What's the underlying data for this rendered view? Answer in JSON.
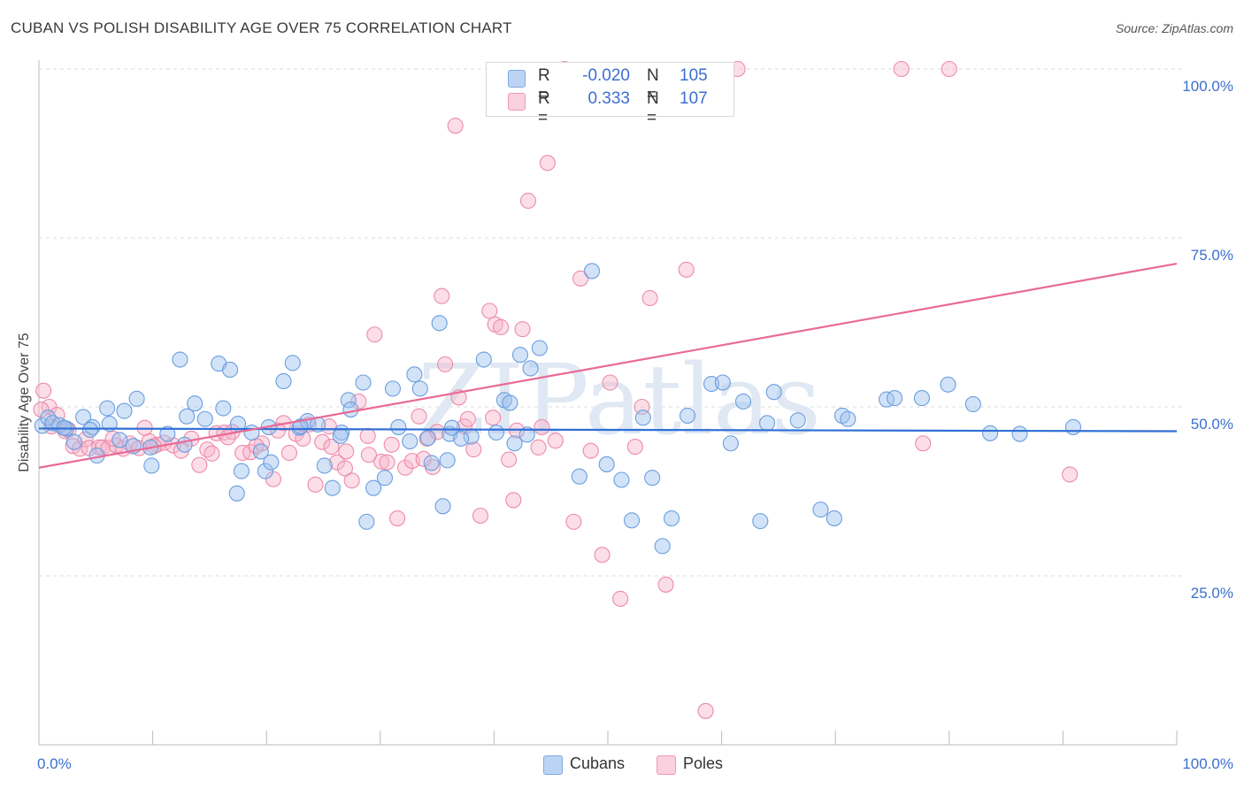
{
  "header": {
    "title": "CUBAN VS POLISH DISABILITY AGE OVER 75 CORRELATION CHART",
    "source": "Source: ZipAtlas.com"
  },
  "legend": {
    "rows": [
      {
        "r_label": "R =",
        "r_value": "-0.020",
        "n_label": "N =",
        "n_value": "105",
        "color": "#9ec0ee"
      },
      {
        "r_label": "R =",
        "r_value": "0.333",
        "n_label": "N =",
        "n_value": "107",
        "color": "#f7b6cb"
      }
    ]
  },
  "bottom_legend": [
    {
      "label": "Cubans",
      "color": "#9ec0ee"
    },
    {
      "label": "Poles",
      "color": "#f7b6cb"
    }
  ],
  "chart_data": {
    "type": "scatter",
    "title": "CUBAN VS POLISH DISABILITY AGE OVER 75 CORRELATION CHART",
    "ylabel": "Disability Age Over 75",
    "xlabel": "",
    "x_tick_labels": [
      "0.0%",
      "100.0%"
    ],
    "y_tick_labels": [
      "25.0%",
      "50.0%",
      "75.0%",
      "100.0%"
    ],
    "xlim": [
      0,
      100
    ],
    "ylim": [
      0,
      100
    ],
    "grid": "horizontal dashed",
    "watermark": "ZIPatlas",
    "series": [
      {
        "name": "Cubans",
        "color": "#6a9ee0",
        "fill": "#9ec0ee",
        "trend": {
          "x": [
            0,
            100
          ],
          "y": [
            46.8,
            46.4
          ],
          "color": "#2f6fd6"
        },
        "points": [
          [
            0.3,
            47.2
          ],
          [
            0.8,
            48.4
          ],
          [
            1.2,
            47.6
          ],
          [
            1.8,
            47.3
          ],
          [
            2.4,
            46.8
          ],
          [
            3.1,
            44.8
          ],
          [
            3.9,
            48.5
          ],
          [
            4.7,
            47.0
          ],
          [
            5.1,
            42.8
          ],
          [
            6.0,
            49.8
          ],
          [
            6.2,
            47.5
          ],
          [
            7.1,
            45.1
          ],
          [
            7.5,
            49.4
          ],
          [
            8.3,
            44.2
          ],
          [
            8.6,
            51.2
          ],
          [
            9.8,
            44.0
          ],
          [
            9.9,
            41.3
          ],
          [
            12.4,
            57.0
          ],
          [
            13.0,
            48.6
          ],
          [
            13.7,
            50.5
          ],
          [
            14.6,
            48.2
          ],
          [
            15.8,
            56.4
          ],
          [
            16.2,
            49.8
          ],
          [
            16.8,
            55.5
          ],
          [
            17.4,
            37.2
          ],
          [
            17.8,
            40.5
          ],
          [
            18.7,
            46.2
          ],
          [
            19.5,
            43.4
          ],
          [
            19.9,
            40.5
          ],
          [
            20.2,
            47.0
          ],
          [
            20.4,
            41.8
          ],
          [
            21.5,
            53.8
          ],
          [
            22.3,
            56.5
          ],
          [
            22.9,
            46.9
          ],
          [
            23.6,
            47.9
          ],
          [
            24.5,
            47.4
          ],
          [
            25.1,
            41.3
          ],
          [
            25.8,
            38.0
          ],
          [
            26.6,
            46.2
          ],
          [
            27.2,
            51.0
          ],
          [
            27.4,
            49.6
          ],
          [
            28.5,
            53.6
          ],
          [
            28.8,
            33.0
          ],
          [
            29.4,
            38.0
          ],
          [
            30.4,
            39.5
          ],
          [
            31.1,
            52.7
          ],
          [
            31.6,
            47.0
          ],
          [
            33.0,
            54.8
          ],
          [
            33.5,
            52.7
          ],
          [
            34.2,
            45.4
          ],
          [
            34.5,
            41.7
          ],
          [
            35.2,
            62.4
          ],
          [
            35.5,
            35.3
          ],
          [
            36.1,
            46.0
          ],
          [
            36.3,
            46.9
          ],
          [
            38.0,
            45.6
          ],
          [
            39.1,
            57.0
          ],
          [
            40.2,
            46.2
          ],
          [
            40.9,
            51.0
          ],
          [
            41.4,
            50.6
          ],
          [
            42.3,
            57.7
          ],
          [
            42.9,
            45.9
          ],
          [
            43.2,
            55.7
          ],
          [
            44.0,
            58.7
          ],
          [
            47.5,
            39.7
          ],
          [
            48.6,
            70.1
          ],
          [
            49.9,
            41.5
          ],
          [
            51.2,
            39.2
          ],
          [
            52.1,
            33.2
          ],
          [
            53.1,
            48.4
          ],
          [
            53.9,
            39.5
          ],
          [
            54.8,
            29.4
          ],
          [
            55.6,
            33.5
          ],
          [
            57.0,
            48.7
          ],
          [
            59.1,
            53.4
          ],
          [
            60.1,
            53.6
          ],
          [
            60.8,
            44.6
          ],
          [
            61.9,
            50.8
          ],
          [
            63.4,
            33.1
          ],
          [
            64.0,
            47.6
          ],
          [
            64.6,
            52.2
          ],
          [
            66.7,
            48.0
          ],
          [
            68.7,
            34.8
          ],
          [
            69.9,
            33.5
          ],
          [
            70.6,
            48.7
          ],
          [
            71.1,
            48.2
          ],
          [
            74.5,
            51.1
          ],
          [
            75.2,
            51.3
          ],
          [
            77.6,
            51.3
          ],
          [
            79.9,
            53.3
          ],
          [
            82.1,
            50.4
          ],
          [
            83.6,
            46.1
          ],
          [
            86.2,
            46.0
          ],
          [
            90.9,
            47.0
          ],
          [
            2.2,
            46.9
          ],
          [
            4.5,
            46.6
          ],
          [
            11.3,
            46.0
          ],
          [
            12.8,
            44.4
          ],
          [
            17.5,
            47.5
          ],
          [
            23.0,
            47.1
          ],
          [
            26.5,
            45.7
          ],
          [
            32.6,
            44.9
          ],
          [
            35.9,
            42.1
          ],
          [
            41.8,
            44.6
          ],
          [
            37.1,
            45.3
          ]
        ]
      },
      {
        "name": "Poles",
        "color": "#ee8aa9",
        "fill": "#f7b6cb",
        "trend": {
          "x": [
            0,
            100
          ],
          "y": [
            41.0,
            71.2
          ],
          "color": "#e96a95"
        },
        "points": [
          [
            0.4,
            52.4
          ],
          [
            0.9,
            50.0
          ],
          [
            1.6,
            48.8
          ],
          [
            2.3,
            46.4
          ],
          [
            2.6,
            46.6
          ],
          [
            3.0,
            44.2
          ],
          [
            3.6,
            43.8
          ],
          [
            4.1,
            45.2
          ],
          [
            4.4,
            43.9
          ],
          [
            5.3,
            44.0
          ],
          [
            5.6,
            44.0
          ],
          [
            6.1,
            43.9
          ],
          [
            6.8,
            44.3
          ],
          [
            7.4,
            43.8
          ],
          [
            8.0,
            44.6
          ],
          [
            8.8,
            43.9
          ],
          [
            9.7,
            44.9
          ],
          [
            10.4,
            44.4
          ],
          [
            11.0,
            44.7
          ],
          [
            11.8,
            44.3
          ],
          [
            12.5,
            43.5
          ],
          [
            13.4,
            45.3
          ],
          [
            14.1,
            41.4
          ],
          [
            14.8,
            43.7
          ],
          [
            15.6,
            46.1
          ],
          [
            16.3,
            46.2
          ],
          [
            17.0,
            46.3
          ],
          [
            17.9,
            43.2
          ],
          [
            18.6,
            43.3
          ],
          [
            19.6,
            44.6
          ],
          [
            20.6,
            39.3
          ],
          [
            21.5,
            47.6
          ],
          [
            22.0,
            43.2
          ],
          [
            22.6,
            46.0
          ],
          [
            23.7,
            47.4
          ],
          [
            24.3,
            38.5
          ],
          [
            24.9,
            44.8
          ],
          [
            25.5,
            47.1
          ],
          [
            26.2,
            41.8
          ],
          [
            27.0,
            43.4
          ],
          [
            27.5,
            39.1
          ],
          [
            28.1,
            50.8
          ],
          [
            28.9,
            45.7
          ],
          [
            29.5,
            60.7
          ],
          [
            30.1,
            41.9
          ],
          [
            30.6,
            41.8
          ],
          [
            31.5,
            33.5
          ],
          [
            32.2,
            41.0
          ],
          [
            32.8,
            42.0
          ],
          [
            33.4,
            48.6
          ],
          [
            34.1,
            45.3
          ],
          [
            34.6,
            41.1
          ],
          [
            35.4,
            66.4
          ],
          [
            35.7,
            56.3
          ],
          [
            36.6,
            91.6
          ],
          [
            36.9,
            51.4
          ],
          [
            37.4,
            47.1
          ],
          [
            38.2,
            43.7
          ],
          [
            38.8,
            33.9
          ],
          [
            39.6,
            64.2
          ],
          [
            40.1,
            62.2
          ],
          [
            40.6,
            61.8
          ],
          [
            41.3,
            42.2
          ],
          [
            41.7,
            36.2
          ],
          [
            42.5,
            61.5
          ],
          [
            43.0,
            80.5
          ],
          [
            43.9,
            44.0
          ],
          [
            44.7,
            86.1
          ],
          [
            45.4,
            45.0
          ],
          [
            46.2,
            100.0
          ],
          [
            47.0,
            33.0
          ],
          [
            47.6,
            69.0
          ],
          [
            48.5,
            43.5
          ],
          [
            49.5,
            28.1
          ],
          [
            50.2,
            53.6
          ],
          [
            51.1,
            21.6
          ],
          [
            52.4,
            44.1
          ],
          [
            53.0,
            50.0
          ],
          [
            53.7,
            66.1
          ],
          [
            55.1,
            23.7
          ],
          [
            56.9,
            70.3
          ],
          [
            58.6,
            5.0
          ],
          [
            61.4,
            100.0
          ],
          [
            75.8,
            100.0
          ],
          [
            77.7,
            44.6
          ],
          [
            80.0,
            100.0
          ],
          [
            90.6,
            40.0
          ],
          [
            0.2,
            49.6
          ],
          [
            1.1,
            47.1
          ],
          [
            6.5,
            45.3
          ],
          [
            9.3,
            46.9
          ],
          [
            10.1,
            44.2
          ],
          [
            15.2,
            43.1
          ],
          [
            16.6,
            45.5
          ],
          [
            19.1,
            44.2
          ],
          [
            21.0,
            46.5
          ],
          [
            23.2,
            45.3
          ],
          [
            25.7,
            44.1
          ],
          [
            26.9,
            40.9
          ],
          [
            29.0,
            42.9
          ],
          [
            31.0,
            44.4
          ],
          [
            33.8,
            42.3
          ],
          [
            35.0,
            46.3
          ],
          [
            37.7,
            48.2
          ],
          [
            39.9,
            48.4
          ],
          [
            42.0,
            46.5
          ],
          [
            44.2,
            47.0
          ]
        ]
      }
    ]
  }
}
